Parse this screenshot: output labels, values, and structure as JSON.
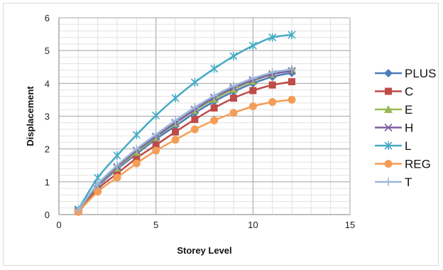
{
  "chart_data": {
    "type": "line",
    "title": "",
    "xlabel": "Storey Level",
    "ylabel": "Displacement",
    "xlim": [
      0,
      15
    ],
    "ylim": [
      0,
      6
    ],
    "x_ticks": [
      "0",
      "5",
      "10",
      "15"
    ],
    "y_ticks": [
      "0",
      "1",
      "2",
      "3",
      "4",
      "5",
      "6"
    ],
    "grid": true,
    "legend_position": "right",
    "x": [
      1,
      2,
      3,
      4,
      5,
      6,
      7,
      8,
      9,
      10,
      11,
      12
    ],
    "series": [
      {
        "name": "PLUS",
        "color": "#4a7ebb",
        "marker": "diamond",
        "values": [
          0.12,
          0.85,
          1.38,
          1.85,
          2.3,
          2.7,
          3.1,
          3.45,
          3.75,
          4.0,
          4.2,
          4.32
        ]
      },
      {
        "name": "C",
        "color": "#be4b48",
        "marker": "square",
        "values": [
          0.1,
          0.78,
          1.25,
          1.72,
          2.12,
          2.52,
          2.9,
          3.25,
          3.55,
          3.78,
          3.95,
          4.05
        ]
      },
      {
        "name": "E",
        "color": "#98b954",
        "marker": "triangle",
        "values": [
          0.13,
          0.88,
          1.42,
          1.9,
          2.35,
          2.78,
          3.18,
          3.52,
          3.82,
          4.07,
          4.28,
          4.42
        ]
      },
      {
        "name": "H",
        "color": "#7d5fa0",
        "marker": "x",
        "values": [
          0.14,
          0.9,
          1.45,
          1.95,
          2.38,
          2.8,
          3.2,
          3.57,
          3.87,
          4.1,
          4.28,
          4.38
        ]
      },
      {
        "name": "L",
        "color": "#46aac5",
        "marker": "star",
        "values": [
          0.16,
          1.12,
          1.8,
          2.43,
          3.02,
          3.55,
          4.03,
          4.45,
          4.83,
          5.15,
          5.4,
          5.48
        ]
      },
      {
        "name": "REG",
        "color": "#f59d56",
        "marker": "circle",
        "values": [
          0.08,
          0.7,
          1.13,
          1.56,
          1.95,
          2.28,
          2.6,
          2.87,
          3.1,
          3.3,
          3.43,
          3.5
        ]
      },
      {
        "name": "T",
        "color": "#9bb7d9",
        "marker": "plus",
        "values": [
          0.15,
          0.93,
          1.5,
          2.0,
          2.44,
          2.87,
          3.27,
          3.62,
          3.92,
          4.15,
          4.33,
          4.43
        ]
      }
    ]
  }
}
